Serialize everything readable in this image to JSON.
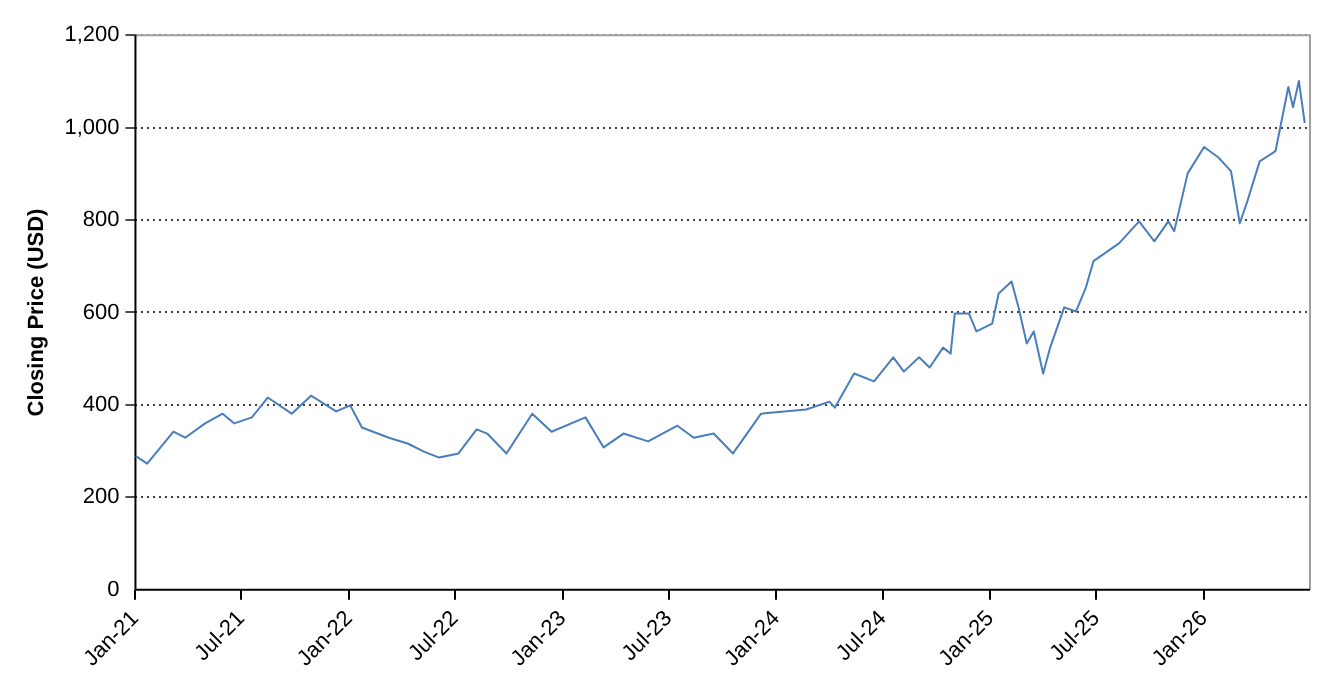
{
  "chart_data": {
    "type": "line",
    "ylabel": "Closing Price (USD)",
    "x": [
      "2021-01-01",
      "2021-01-21",
      "2021-03-07",
      "2021-03-27",
      "2021-04-30",
      "2021-05-30",
      "2021-06-19",
      "2021-07-19",
      "2021-08-15",
      "2021-09-25",
      "2021-10-28",
      "2021-12-10",
      "2022-01-03",
      "2022-01-23",
      "2022-03-10",
      "2022-04-12",
      "2022-05-09",
      "2022-06-04",
      "2022-07-07",
      "2022-08-07",
      "2022-08-25",
      "2022-09-27",
      "2022-11-10",
      "2022-12-13",
      "2023-02-09",
      "2023-03-12",
      "2023-04-15",
      "2023-05-27",
      "2023-07-16",
      "2023-08-13",
      "2023-09-16",
      "2023-10-19",
      "2023-11-12",
      "2023-12-06",
      "2024-02-21",
      "2024-04-01",
      "2024-04-10",
      "2024-05-13",
      "2024-06-16",
      "2024-07-19",
      "2024-08-06",
      "2024-09-01",
      "2024-09-19",
      "2024-10-12",
      "2024-10-25",
      "2024-11-01",
      "2024-11-25",
      "2024-12-08",
      "2025-01-04",
      "2025-01-15",
      "2025-02-06",
      "2025-02-18",
      "2025-03-04",
      "2025-03-16",
      "2025-04-01",
      "2025-04-13",
      "2025-05-07",
      "2025-05-27",
      "2025-06-13",
      "2025-06-26",
      "2025-08-09",
      "2025-09-12",
      "2025-10-08",
      "2025-11-01",
      "2025-11-11",
      "2025-12-04",
      "2026-01-01",
      "2026-01-25",
      "2026-02-16",
      "2026-03-03",
      "2026-03-16",
      "2026-04-06",
      "2026-05-03",
      "2026-05-25",
      "2026-06-02",
      "2026-06-12",
      "2026-06-22"
    ],
    "series": [
      {
        "color": "#4a7ebb",
        "values": [
          290,
          273,
          342,
          329,
          360,
          381,
          360,
          373,
          416,
          381,
          420,
          386,
          399,
          351,
          329,
          316,
          299,
          286,
          295,
          347,
          338,
          295,
          381,
          342,
          373,
          308,
          338,
          321,
          355,
          329,
          338,
          295,
          338,
          381,
          390,
          407,
          394,
          468,
          451,
          503,
          472,
          503,
          481,
          524,
          511,
          598,
          598,
          559,
          576,
          641,
          667,
          611,
          533,
          559,
          468,
          524,
          611,
          602,
          654,
          711,
          750,
          797,
          754,
          797,
          776,
          901,
          958,
          936,
          906,
          793,
          841,
          927,
          949,
          1088,
          1044,
          1101,
          1010
        ]
      }
    ],
    "xlim": [
      "2021-01-01",
      "2026-07-01"
    ],
    "xticks": [
      {
        "value": "2021-01-01",
        "label": "Jan-21"
      },
      {
        "value": "2021-07-01",
        "label": "Jul-21"
      },
      {
        "value": "2022-01-01",
        "label": "Jan-22"
      },
      {
        "value": "2022-07-01",
        "label": "Jul-22"
      },
      {
        "value": "2023-01-01",
        "label": "Jan-23"
      },
      {
        "value": "2023-07-01",
        "label": "Jul-23"
      },
      {
        "value": "2024-01-01",
        "label": "Jan-24"
      },
      {
        "value": "2024-07-01",
        "label": "Jul-24"
      },
      {
        "value": "2025-01-01",
        "label": "Jan-25"
      },
      {
        "value": "2025-07-01",
        "label": "Jul-25"
      },
      {
        "value": "2026-01-01",
        "label": "Jan-26"
      }
    ],
    "ylim": [
      0,
      1200
    ],
    "yticks": [
      0,
      200,
      400,
      600,
      800,
      {
        "value": 1000,
        "label": "1,000"
      },
      {
        "value": 1200,
        "label": "1,200"
      }
    ],
    "grid": "y",
    "legend": false,
    "marker": "none",
    "line_style": "solid"
  }
}
